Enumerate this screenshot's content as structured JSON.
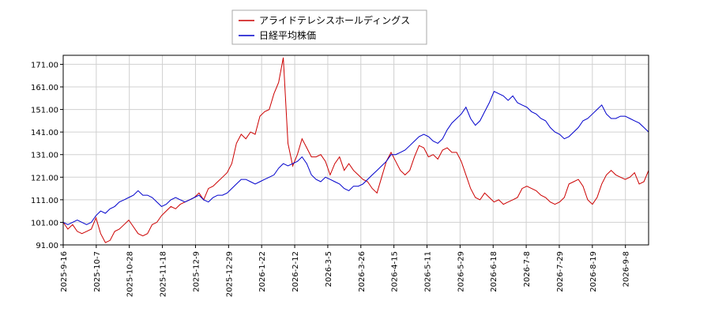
{
  "chart_data": {
    "type": "line",
    "title": "",
    "xlabel": "",
    "ylabel": "",
    "ylim": [
      91,
      175
    ],
    "grid": true,
    "legend_position": "top-center",
    "yticks": [
      "91.00",
      "101.00",
      "111.00",
      "121.00",
      "131.00",
      "141.00",
      "151.00",
      "161.00",
      "171.00"
    ],
    "xticks": [
      "2025-9-16",
      "2025-10-7",
      "2025-10-28",
      "2025-11-18",
      "2025-12-9",
      "2025-12-29",
      "2026-1-22",
      "2026-2-12",
      "2026-3-5",
      "2026-3-26",
      "2026-4-15",
      "2026-5-11",
      "2026-5-29",
      "2026-6-18",
      "2026-7-8",
      "2026-7-29",
      "2026-8-19",
      "2026-9-8"
    ],
    "series": [
      {
        "name": "アライドテレシスホールディングス",
        "color": "#cc0000",
        "values": [
          101,
          98,
          100,
          97,
          96,
          97,
          98,
          103,
          96,
          92,
          93,
          97,
          98,
          100,
          102,
          99,
          96,
          95,
          96,
          100,
          101,
          104,
          106,
          108,
          107,
          109,
          110,
          111,
          112,
          114,
          111,
          116,
          117,
          119,
          121,
          123,
          127,
          136,
          140,
          138,
          141,
          140,
          148,
          150,
          151,
          158,
          163,
          174,
          136,
          126,
          131,
          138,
          134,
          130,
          130,
          131,
          128,
          122,
          127,
          130,
          124,
          127,
          124,
          122,
          120,
          119,
          116,
          114,
          121,
          128,
          132,
          128,
          124,
          122,
          124,
          130,
          135,
          134,
          130,
          131,
          129,
          133,
          134,
          132,
          132,
          128,
          122,
          116,
          112,
          111,
          114,
          112,
          110,
          111,
          109,
          110,
          111,
          112,
          116,
          117,
          116,
          115,
          113,
          112,
          110,
          109,
          110,
          112,
          118,
          119,
          120,
          117,
          111,
          109,
          112,
          118,
          122,
          124,
          122,
          121,
          120,
          121,
          123,
          118,
          119,
          124
        ]
      },
      {
        "name": "日経平均株価",
        "color": "#0000cc",
        "values": [
          101,
          100,
          101,
          102,
          101,
          100,
          101,
          104,
          106,
          105,
          107,
          108,
          110,
          111,
          112,
          113,
          115,
          113,
          113,
          112,
          110,
          108,
          109,
          111,
          112,
          111,
          110,
          111,
          112,
          113,
          111,
          110,
          112,
          113,
          113,
          114,
          116,
          118,
          120,
          120,
          119,
          118,
          119,
          120,
          121,
          122,
          125,
          127,
          126,
          127,
          128,
          130,
          127,
          122,
          120,
          119,
          121,
          120,
          119,
          118,
          116,
          115,
          117,
          117,
          118,
          120,
          122,
          124,
          126,
          128,
          131,
          131,
          132,
          133,
          135,
          137,
          139,
          140,
          139,
          137,
          136,
          138,
          142,
          145,
          147,
          149,
          152,
          147,
          144,
          146,
          150,
          154,
          159,
          158,
          157,
          155,
          157,
          154,
          153,
          152,
          150,
          149,
          147,
          146,
          143,
          141,
          140,
          138,
          139,
          141,
          143,
          146,
          147,
          149,
          151,
          153,
          149,
          147,
          147,
          148,
          148,
          147,
          146,
          145,
          143,
          141
        ]
      }
    ]
  }
}
